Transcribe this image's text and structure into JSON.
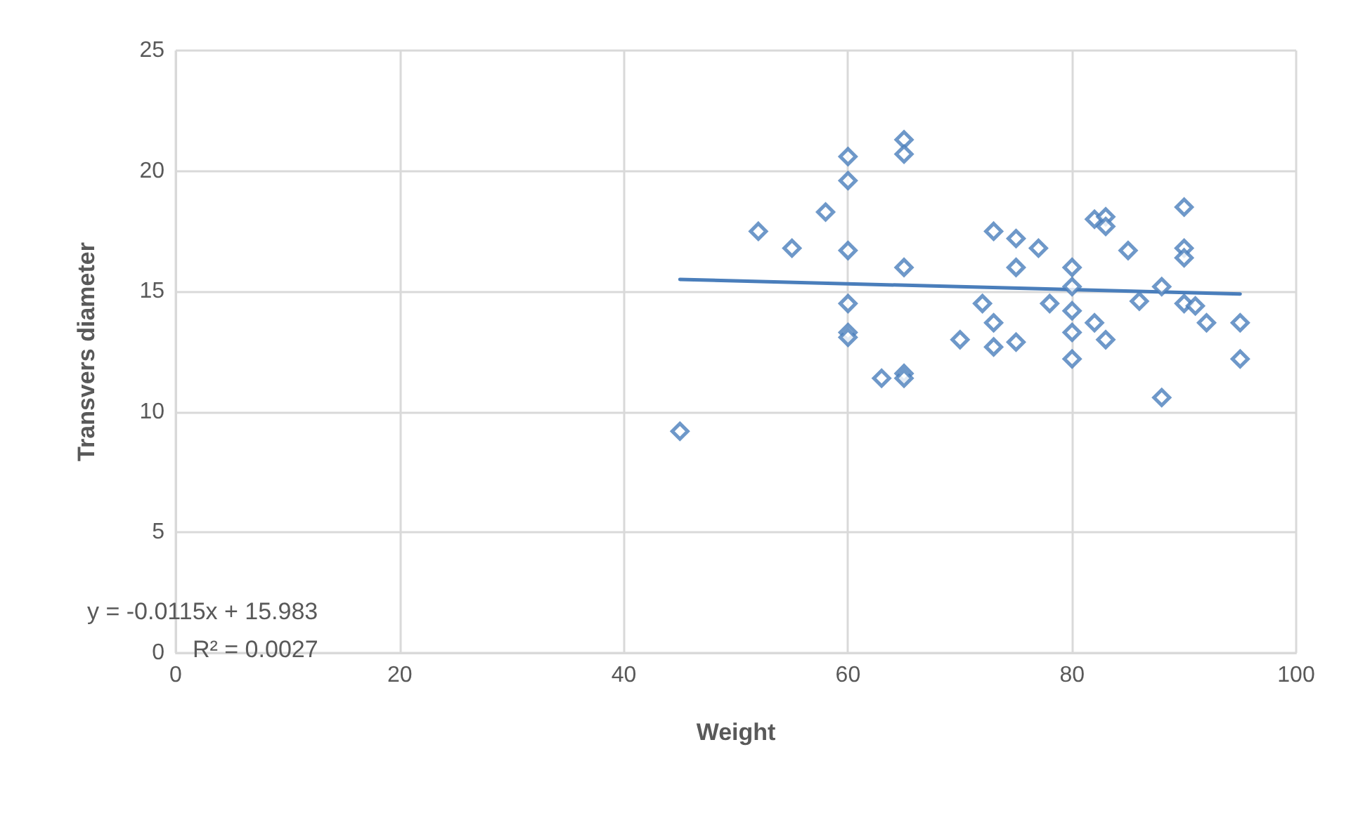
{
  "chart_data": {
    "type": "scatter",
    "xlabel": "Weight",
    "ylabel": "Transvers diameter",
    "marker": "diamond",
    "grid": true,
    "xlim": [
      0,
      100
    ],
    "xticks": [
      0,
      20,
      40,
      60,
      80,
      100
    ],
    "ylim": [
      0,
      25
    ],
    "yticks": [
      0,
      5,
      10,
      15,
      20,
      25
    ],
    "annotations": [
      "y = -0.0115x + 15.983",
      "R² = 0.0027"
    ],
    "series": [
      {
        "color": "#4a7ebb",
        "x": [
          45,
          52,
          55,
          58,
          60,
          60,
          60,
          60,
          60,
          60,
          63,
          65,
          65,
          65,
          65,
          65,
          70,
          72,
          73,
          73,
          73,
          75,
          75,
          75,
          77,
          78,
          80,
          80,
          80,
          80,
          80,
          82,
          82,
          83,
          83,
          83,
          85,
          86,
          88,
          88,
          90,
          90,
          90,
          90,
          91,
          92,
          95,
          95
        ],
        "values": [
          9.2,
          17.5,
          16.8,
          18.3,
          20.6,
          19.6,
          16.7,
          14.5,
          13.3,
          13.1,
          11.4,
          21.3,
          20.7,
          16.0,
          11.6,
          11.4,
          13.0,
          14.5,
          17.5,
          13.7,
          12.7,
          17.2,
          16.0,
          12.9,
          16.8,
          14.5,
          16.0,
          15.2,
          14.2,
          13.3,
          12.2,
          18.0,
          13.7,
          18.1,
          17.7,
          13.0,
          16.7,
          14.6,
          15.2,
          10.6,
          18.5,
          16.8,
          16.4,
          14.5,
          14.4,
          13.7,
          13.7,
          12.2
        ]
      },
      {
        "type": "line",
        "color": "#4a7ebb",
        "marker": "none",
        "x": [
          45,
          95
        ],
        "values": [
          15.5,
          14.9
        ]
      }
    ]
  }
}
